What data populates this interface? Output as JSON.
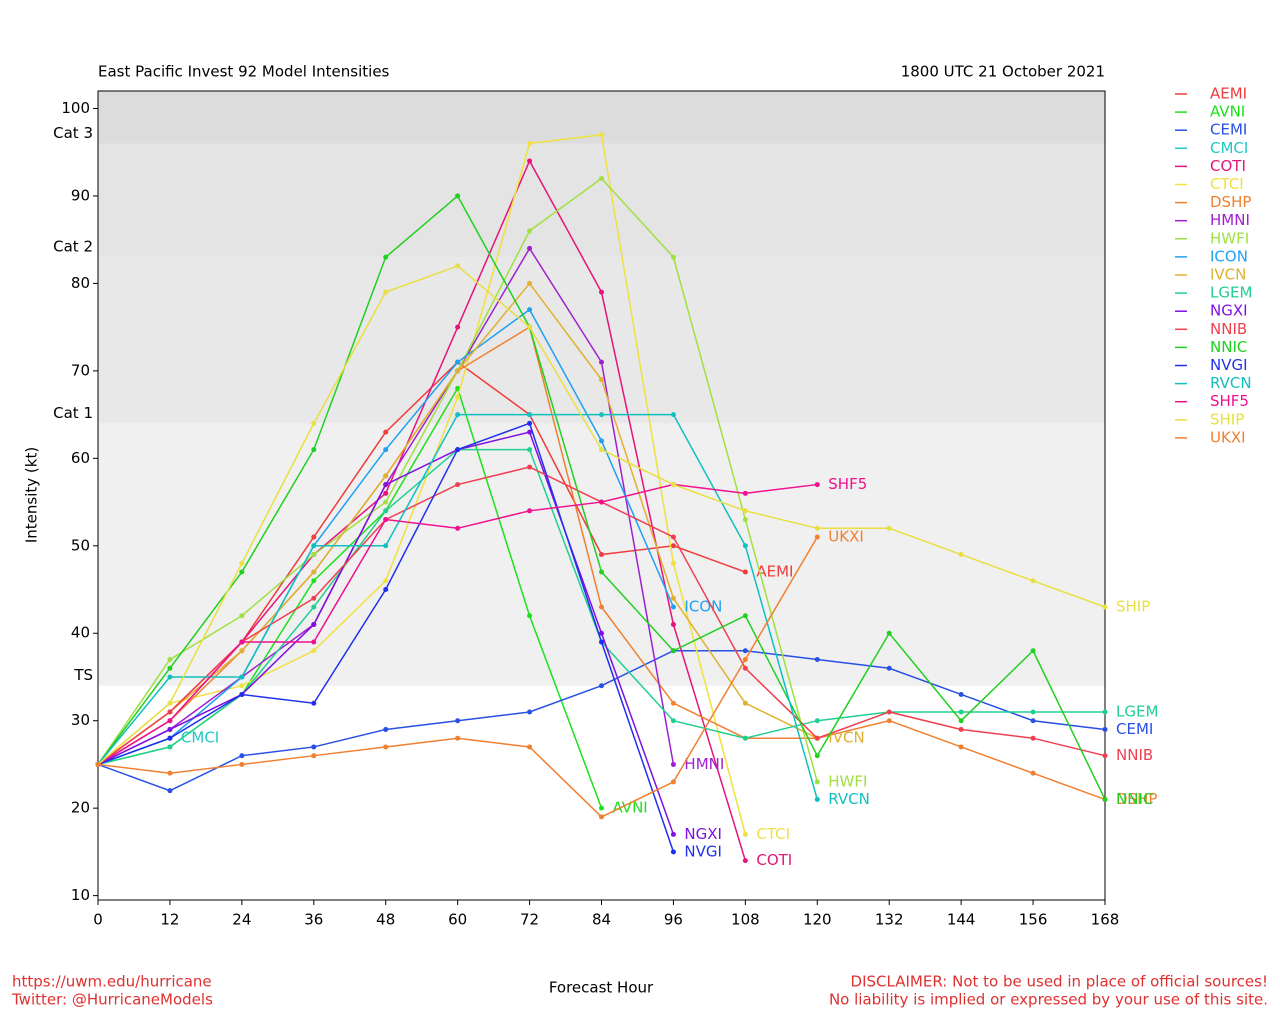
{
  "chart_data": {
    "type": "line",
    "title": "East Pacific Invest 92 Model Intensities",
    "subtitle": "1800 UTC 21 October 2021",
    "xlabel": "Forecast Hour",
    "ylabel": "Intensity (kt)",
    "footer_left": [
      "https://uwm.edu/hurricane",
      "Twitter: @HurricaneModels"
    ],
    "footer_right": [
      "DISCLAIMER: Not to be used in place of official sources!",
      "No liability is implied or expressed by your use of this site."
    ],
    "bands": [
      {
        "label": "TS",
        "value": 34
      },
      {
        "label": "Cat 1",
        "value": 64
      },
      {
        "label": "Cat 2",
        "value": 83
      },
      {
        "label": "Cat 3",
        "value": 96
      }
    ],
    "x": [
      0,
      12,
      24,
      36,
      48,
      60,
      72,
      84,
      96,
      108,
      120,
      132,
      144,
      156,
      168
    ],
    "xlim": [
      0,
      168
    ],
    "xticks": [
      0,
      12,
      24,
      36,
      48,
      60,
      72,
      84,
      96,
      108,
      120,
      132,
      144,
      156,
      168
    ],
    "ylim": [
      9.5,
      102
    ],
    "yticks": [
      10,
      20,
      30,
      40,
      50,
      60,
      70,
      80,
      90,
      100
    ],
    "series": [
      {
        "name": "AEMI",
        "color": "#f03c3c",
        "values": [
          25,
          31,
          39,
          51,
          63,
          71,
          65,
          49,
          50,
          47,
          null,
          null,
          null,
          null,
          null
        ]
      },
      {
        "name": "AVNI",
        "color": "#1ee01e",
        "values": [
          25,
          27,
          33,
          46,
          54,
          68,
          42,
          20,
          null,
          null,
          null,
          null,
          null,
          null,
          null
        ]
      },
      {
        "name": "CEMI",
        "color": "#2850e6",
        "values": [
          25,
          22,
          26,
          27,
          29,
          30,
          31,
          34,
          38,
          38,
          37,
          36,
          33,
          30,
          29
        ]
      },
      {
        "name": "CMCI",
        "color": "#20c8c8",
        "values": [
          25,
          28,
          null,
          null,
          null,
          null,
          null,
          null,
          null,
          null,
          null,
          null,
          null,
          null,
          null
        ]
      },
      {
        "name": "COTI",
        "color": "#e6147a",
        "values": [
          25,
          30,
          39,
          49,
          56,
          75,
          94,
          79,
          41,
          14,
          null,
          null,
          null,
          null,
          null
        ]
      },
      {
        "name": "CTCI",
        "color": "#f0e040",
        "values": [
          25,
          32,
          34,
          38,
          46,
          67,
          96,
          97,
          48,
          17,
          null,
          null,
          null,
          null,
          null
        ]
      },
      {
        "name": "DSHP",
        "color": "#f08030",
        "values": [
          25,
          30,
          38,
          47,
          58,
          70,
          75,
          43,
          32,
          28,
          28,
          30,
          27,
          24,
          21
        ]
      },
      {
        "name": "HMNI",
        "color": "#a020d0",
        "values": [
          25,
          29,
          35,
          41,
          57,
          70,
          84,
          71,
          25,
          null,
          null,
          null,
          null,
          null,
          null
        ]
      },
      {
        "name": "HWFI",
        "color": "#a0e040",
        "values": [
          25,
          37,
          42,
          49,
          55,
          70,
          86,
          92,
          83,
          53,
          23,
          null,
          null,
          null,
          null
        ]
      },
      {
        "name": "ICON",
        "color": "#20a0f0",
        "values": [
          25,
          28,
          35,
          50,
          61,
          71,
          77,
          62,
          43,
          null,
          null,
          null,
          null,
          null,
          null
        ]
      },
      {
        "name": "IVCN",
        "color": "#e0b030",
        "values": [
          25,
          31,
          38,
          47,
          58,
          70,
          80,
          69,
          44,
          32,
          28,
          null,
          null,
          null,
          null
        ]
      },
      {
        "name": "LGEM",
        "color": "#20d090",
        "values": [
          25,
          27,
          33,
          43,
          54,
          61,
          61,
          39,
          30,
          28,
          30,
          31,
          31,
          31,
          31
        ]
      },
      {
        "name": "NGXI",
        "color": "#8010e0",
        "values": [
          25,
          29,
          33,
          41,
          57,
          61,
          63,
          40,
          17,
          null,
          null,
          null,
          null,
          null,
          null
        ]
      },
      {
        "name": "NNIB",
        "color": "#f04050",
        "values": [
          25,
          31,
          39,
          44,
          53,
          57,
          59,
          55,
          51,
          36,
          28,
          31,
          29,
          28,
          26
        ]
      },
      {
        "name": "NNIC",
        "color": "#20d020",
        "values": [
          25,
          36,
          47,
          61,
          83,
          90,
          75,
          47,
          38,
          42,
          26,
          40,
          30,
          38,
          21
        ]
      },
      {
        "name": "NVGI",
        "color": "#2030f0",
        "values": [
          25,
          28,
          33,
          32,
          45,
          61,
          64,
          39,
          15,
          null,
          null,
          null,
          null,
          null,
          null
        ]
      },
      {
        "name": "RVCN",
        "color": "#10c0c0",
        "values": [
          25,
          35,
          35,
          50,
          50,
          65,
          65,
          65,
          65,
          50,
          21,
          null,
          null,
          null,
          null
        ]
      },
      {
        "name": "SHF5",
        "color": "#f01090",
        "values": [
          25,
          30,
          39,
          39,
          53,
          52,
          54,
          55,
          57,
          56,
          57,
          null,
          null,
          null,
          null
        ]
      },
      {
        "name": "SHIP",
        "color": "#e8e040",
        "values": [
          25,
          32,
          48,
          64,
          79,
          82,
          75,
          61,
          57,
          54,
          52,
          52,
          49,
          46,
          43
        ]
      },
      {
        "name": "UKXI",
        "color": "#f08030",
        "values": [
          25,
          24,
          25,
          26,
          27,
          28,
          27,
          19,
          23,
          37,
          51,
          null,
          null,
          null,
          null
        ]
      }
    ]
  }
}
